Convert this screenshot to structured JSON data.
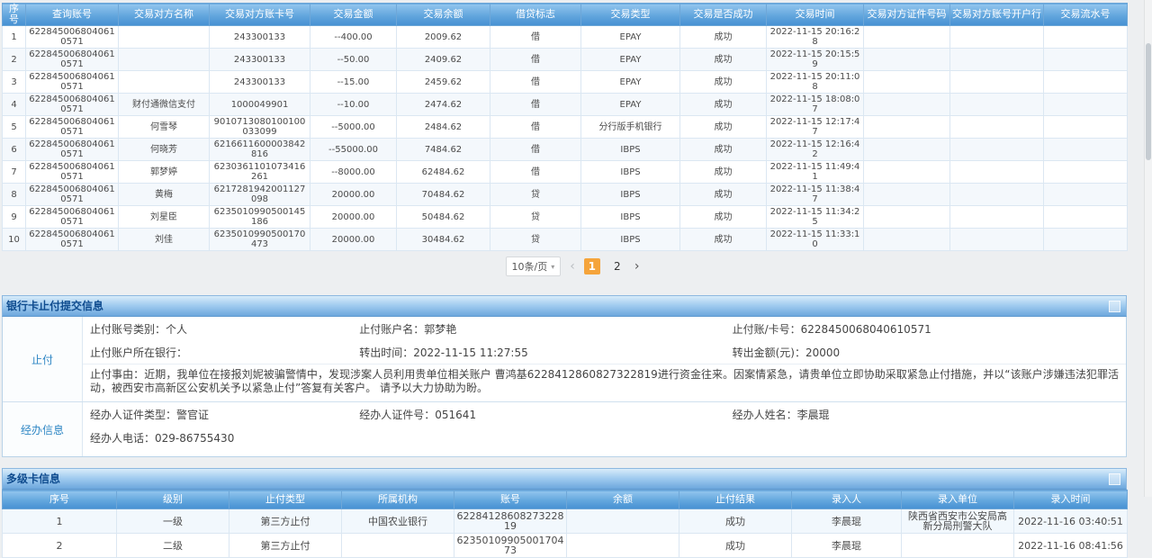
{
  "colors": {
    "header_gradient_top": "#93c6ee",
    "header_gradient_bottom": "#4690d2",
    "section_title_color": "#0f4c8f",
    "active_page_bg": "#f5a43b",
    "group_label_color": "#2e86c4"
  },
  "transactions": {
    "headers": [
      "序号",
      "查询账号",
      "交易对方名称",
      "交易对方账卡号",
      "交易金额",
      "交易余额",
      "借贷标志",
      "交易类型",
      "交易是否成功",
      "交易时间",
      "交易对方证件号码",
      "交易对方账号开户行",
      "交易流水号"
    ],
    "rows": [
      [
        "1",
        "6228450068040610571",
        "",
        "243300133",
        "--400.00",
        "2009.62",
        "借",
        "EPAY",
        "成功",
        "2022-11-15 20:16:28",
        "",
        "",
        ""
      ],
      [
        "2",
        "6228450068040610571",
        "",
        "243300133",
        "--50.00",
        "2409.62",
        "借",
        "EPAY",
        "成功",
        "2022-11-15 20:15:59",
        "",
        "",
        ""
      ],
      [
        "3",
        "6228450068040610571",
        "",
        "243300133",
        "--15.00",
        "2459.62",
        "借",
        "EPAY",
        "成功",
        "2022-11-15 20:11:08",
        "",
        "",
        ""
      ],
      [
        "4",
        "6228450068040610571",
        "财付通微信支付",
        "1000049901",
        "--10.00",
        "2474.62",
        "借",
        "EPAY",
        "成功",
        "2022-11-15 18:08:07",
        "",
        "",
        ""
      ],
      [
        "5",
        "6228450068040610571",
        "何雪琴",
        "9010713080100100033099",
        "--5000.00",
        "2484.62",
        "借",
        "分行版手机银行",
        "成功",
        "2022-11-15 12:17:47",
        "",
        "",
        ""
      ],
      [
        "6",
        "6228450068040610571",
        "何晓芳",
        "6216611600003842816",
        "--55000.00",
        "7484.62",
        "借",
        "IBPS",
        "成功",
        "2022-11-15 12:16:42",
        "",
        "",
        ""
      ],
      [
        "7",
        "6228450068040610571",
        "郭梦婷",
        "6230361101073416261",
        "--8000.00",
        "62484.62",
        "借",
        "IBPS",
        "成功",
        "2022-11-15 11:49:41",
        "",
        "",
        ""
      ],
      [
        "8",
        "6228450068040610571",
        "黄梅",
        "6217281942001127098",
        "20000.00",
        "70484.62",
        "贷",
        "IBPS",
        "成功",
        "2022-11-15 11:38:47",
        "",
        "",
        ""
      ],
      [
        "9",
        "6228450068040610571",
        "刘星臣",
        "6235010990500145186",
        "20000.00",
        "50484.62",
        "贷",
        "IBPS",
        "成功",
        "2022-11-15 11:34:25",
        "",
        "",
        ""
      ],
      [
        "10",
        "6228450068040610571",
        "刘佳",
        "6235010990500170473",
        "20000.00",
        "30484.62",
        "贷",
        "IBPS",
        "成功",
        "2022-11-15 11:33:10",
        "",
        "",
        ""
      ]
    ]
  },
  "pagination": {
    "page_size": "10条/页",
    "prev_icon": "‹",
    "next_icon": "›",
    "pages": [
      "1",
      "2"
    ],
    "active": "1"
  },
  "stop_payment": {
    "title": "银行卡止付提交信息",
    "zhifu": {
      "label": "止付",
      "row1": [
        {
          "label": "止付账号类别：",
          "value": "个人"
        },
        {
          "label": "止付账户名：",
          "value": "郭梦艳"
        },
        {
          "label": "止付账/卡号：",
          "value": "6228450068040610571"
        }
      ],
      "row2": [
        {
          "label": "止付账户所在银行：",
          "value": ""
        },
        {
          "label": "转出时间：",
          "value": "2022-11-15 11:27:55"
        },
        {
          "label": "转出金额(元)：",
          "value": "20000"
        }
      ],
      "reason": "止付事由：近期，我单位在接报刘妮被骗警情中，发现涉案人员利用贵单位相关账户 曹鸿基6228412860827322819进行资金往来。因案情紧急，请贵单位立即协助采取紧急止付措施，并以“该账户涉嫌违法犯罪活动，被西安市高新区公安机关予以紧急止付”答复有关客户。 请予以大力协助为盼。"
    },
    "jingban": {
      "label": "经办信息",
      "row1": [
        {
          "label": "经办人证件类型：",
          "value": "警官证"
        },
        {
          "label": "经办人证件号：",
          "value": "051641"
        },
        {
          "label": "经办人姓名：",
          "value": "李晨琨"
        }
      ],
      "row2": [
        {
          "label": "经办人电话：",
          "value": "029-86755430"
        }
      ]
    }
  },
  "multi_card": {
    "title": "多级卡信息",
    "headers": [
      "序号",
      "级别",
      "止付类型",
      "所属机构",
      "账号",
      "余额",
      "止付结果",
      "录入人",
      "录入单位",
      "录入时间"
    ],
    "rows": [
      [
        "1",
        "一级",
        "第三方止付",
        "中国农业银行",
        "6228412860827322819",
        "",
        "成功",
        "李晨琨",
        "陕西省西安市公安局高新分局刑警大队",
        "2022-11-16 03:40:51"
      ],
      [
        "2",
        "二级",
        "第三方止付",
        "",
        "6235010990500170473",
        "",
        "成功",
        "李晨琨",
        "",
        "2022-11-16 08:41:56"
      ]
    ]
  }
}
